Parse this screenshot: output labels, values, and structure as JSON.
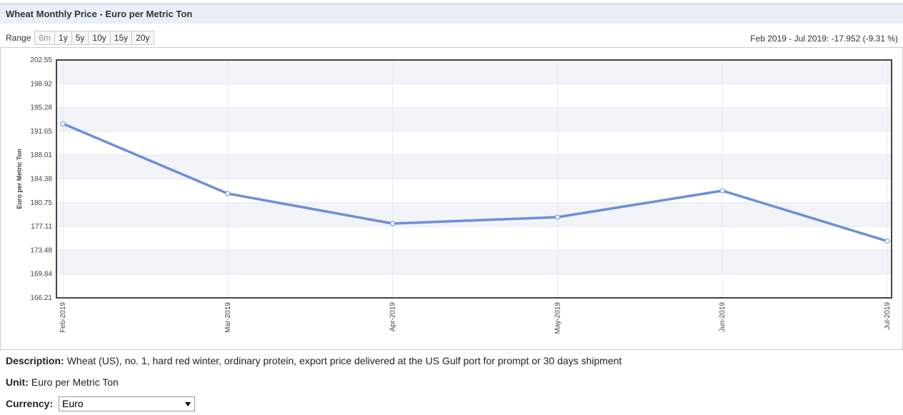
{
  "header": {
    "title": "Wheat Monthly Price - Euro per Metric Ton"
  },
  "range": {
    "label": "Range",
    "options": [
      "6m",
      "1y",
      "5y",
      "10y",
      "15y",
      "20y"
    ]
  },
  "change_summary": "Feb 2019 - Jul 2019: -17.952 (-9.31 %)",
  "chart_data": {
    "type": "line",
    "y_label": "Euro per Metric Ton",
    "categories": [
      "Feb-2019",
      "Mar-2019",
      "Apr-2019",
      "May-2019",
      "Jun-2019",
      "Jul-2019"
    ],
    "values": [
      192.83,
      182.14,
      177.56,
      178.54,
      182.58,
      174.88
    ],
    "color": "#6c8fd9",
    "ylim": [
      166.21,
      202.55
    ],
    "yticks": [
      166.21,
      169.84,
      173.48,
      177.11,
      180.75,
      184.38,
      188.01,
      191.65,
      195.28,
      198.92,
      202.55
    ],
    "grid": true
  },
  "description": {
    "label": "Description:",
    "text": "Wheat (US), no. 1, hard red winter, ordinary protein, export price delivered at the US Gulf port for prompt or 30 days shipment"
  },
  "unit": {
    "label": "Unit:",
    "text": "Euro per Metric Ton"
  },
  "currency": {
    "label": "Currency:",
    "selected": "Euro"
  }
}
